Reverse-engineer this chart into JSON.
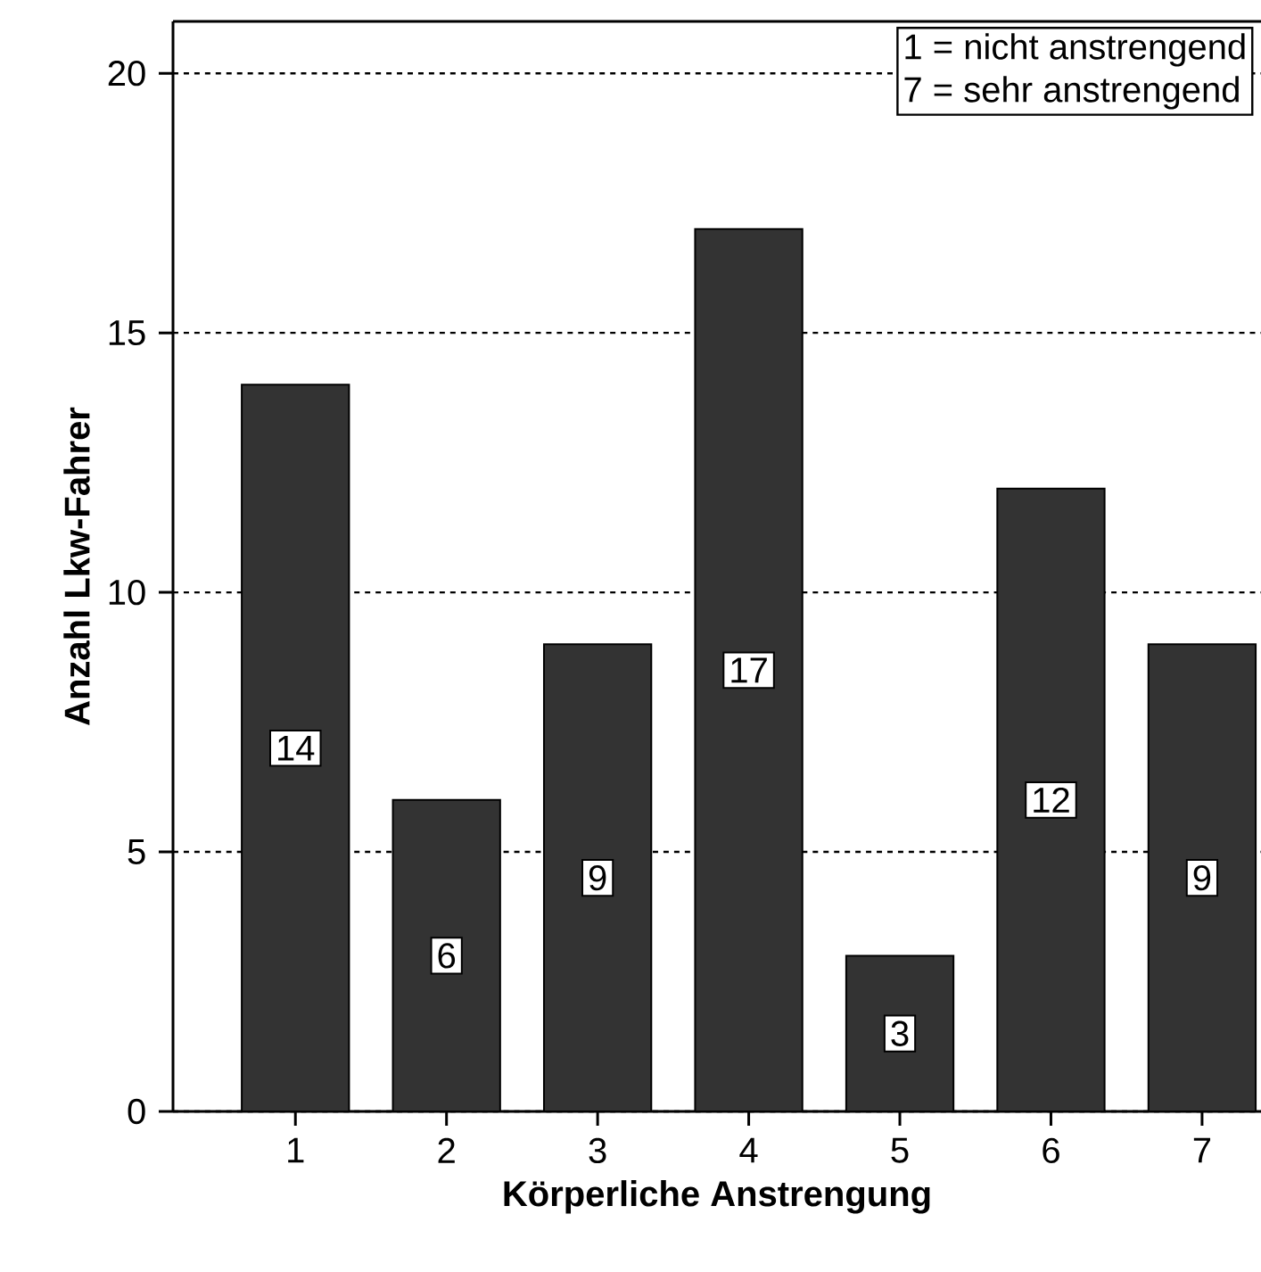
{
  "chart_data": {
    "type": "bar",
    "xlabel": "Körperliche Anstrengung",
    "ylabel": "Anzahl Lkw-Fahrer",
    "categories": [
      "1",
      "2",
      "3",
      "4",
      "5",
      "6",
      "7"
    ],
    "values": [
      14,
      6,
      9,
      17,
      3,
      12,
      9
    ],
    "color": "#333333",
    "ylim": [
      0,
      21
    ],
    "yticks": [
      0,
      5,
      10,
      15,
      20
    ],
    "grid": "y",
    "data_labels": true,
    "annotations": [
      "1 = nicht anstrengend",
      "7 = sehr anstrengend"
    ]
  }
}
